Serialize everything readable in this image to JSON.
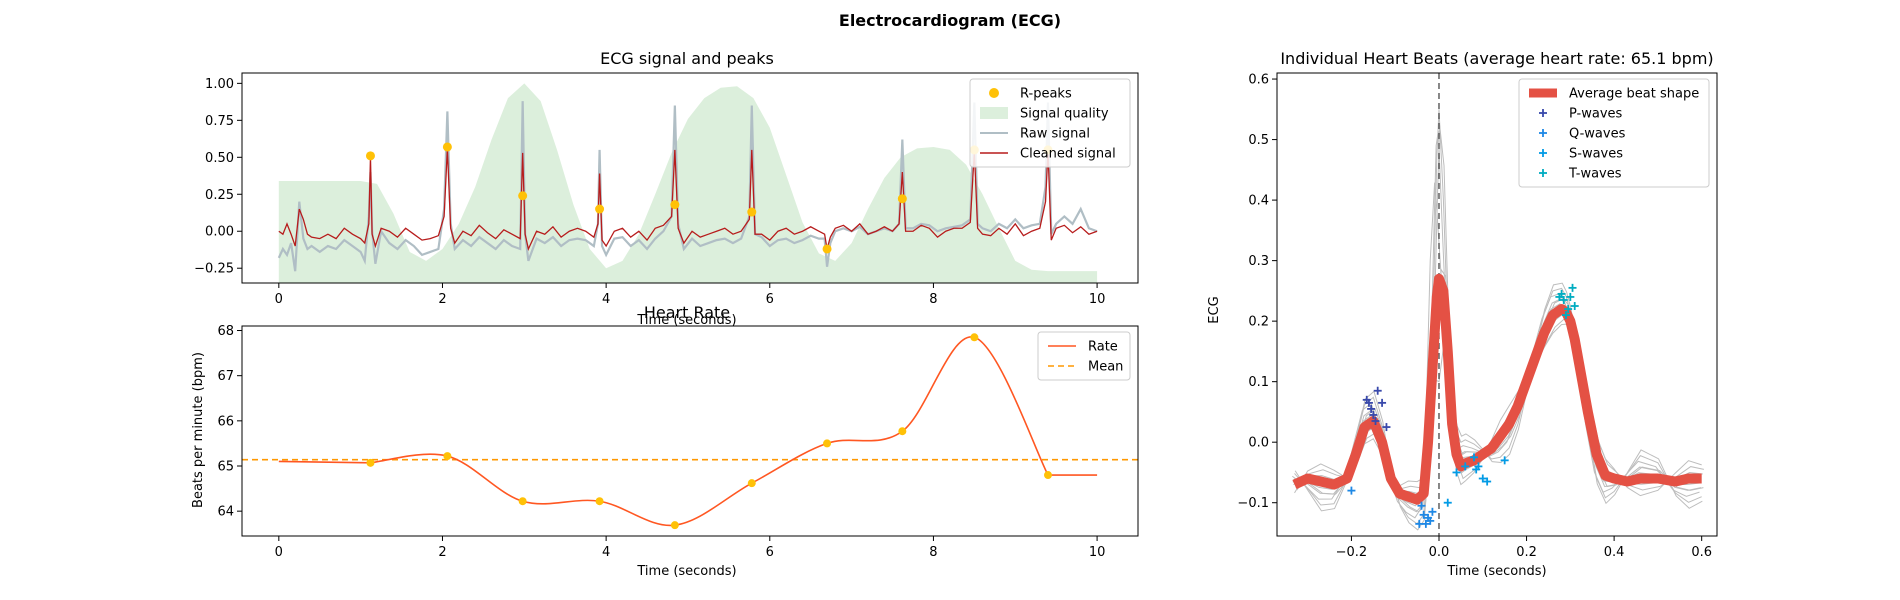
{
  "figure": {
    "suptitle": "Electrocardiogram (ECG)"
  },
  "colors": {
    "rpeak": "#FFC107",
    "quality": "#DCEFDC",
    "raw": "#B0BEC5",
    "clean": "#B71C1C",
    "rate": "#FF5722",
    "mean": "#FF9800",
    "avg_beat": "#E45144",
    "individual_beat": "#BDBDBD",
    "p_wave": "#3949AB",
    "q_wave": "#1E88E5",
    "s_wave": "#039BE5",
    "t_wave": "#00ACC1",
    "vline": "#555555"
  },
  "chart_data": [
    {
      "id": "ecg",
      "type": "line",
      "title": "ECG signal and peaks",
      "xlabel": "Time (seconds)",
      "ylabel": "",
      "xlim": [
        -0.45,
        10.5
      ],
      "ylim": [
        -0.35,
        1.07
      ],
      "xticks": [
        0,
        2,
        4,
        6,
        8,
        10
      ],
      "yticks": [
        -0.25,
        0.0,
        0.25,
        0.5,
        0.75,
        1.0
      ],
      "ytick_labels": [
        "−0.25",
        "0.00",
        "0.25",
        "0.50",
        "0.75",
        "1.00"
      ],
      "legend": [
        "R-peaks",
        "Signal quality",
        "Raw signal",
        "Cleaned signal"
      ],
      "legend_position": "upper right",
      "r_peaks": {
        "x": [
          1.12,
          2.06,
          2.98,
          3.92,
          4.84,
          5.78,
          6.7,
          7.62,
          8.5,
          9.4
        ],
        "y": [
          0.51,
          0.57,
          0.24,
          0.15,
          0.18,
          0.13,
          -0.12,
          0.22,
          0.55,
          0.55
        ]
      },
      "quality": {
        "x": [
          0,
          0.2,
          0.4,
          0.6,
          0.8,
          1.0,
          1.2,
          1.4,
          1.6,
          1.8,
          2.0,
          2.2,
          2.4,
          2.6,
          2.8,
          3.0,
          3.2,
          3.4,
          3.6,
          3.8,
          4.0,
          4.2,
          4.4,
          4.6,
          4.8,
          5.0,
          5.2,
          5.4,
          5.6,
          5.8,
          6.0,
          6.2,
          6.4,
          6.6,
          6.8,
          7.0,
          7.2,
          7.4,
          7.6,
          7.8,
          8.0,
          8.2,
          8.4,
          8.6,
          8.8,
          9.0,
          9.2,
          9.4,
          9.6,
          9.8,
          10.0
        ],
        "y": [
          0.34,
          0.34,
          0.34,
          0.34,
          0.34,
          0.34,
          0.32,
          0.12,
          -0.14,
          -0.2,
          -0.12,
          0.05,
          0.3,
          0.62,
          0.9,
          1.0,
          0.88,
          0.55,
          0.18,
          -0.12,
          -0.25,
          -0.2,
          -0.02,
          0.25,
          0.53,
          0.76,
          0.9,
          0.97,
          0.98,
          0.9,
          0.7,
          0.38,
          0.06,
          -0.15,
          -0.2,
          -0.08,
          0.15,
          0.36,
          0.5,
          0.56,
          0.57,
          0.55,
          0.45,
          0.25,
          0.02,
          -0.2,
          -0.26,
          -0.27,
          -0.27,
          -0.27,
          -0.27
        ]
      },
      "raw": {
        "x": [
          0,
          0.05,
          0.1,
          0.15,
          0.2,
          0.25,
          0.3,
          0.35,
          0.4,
          0.5,
          0.6,
          0.7,
          0.8,
          0.9,
          1.0,
          1.05,
          1.1,
          1.12,
          1.14,
          1.18,
          1.25,
          1.35,
          1.45,
          1.55,
          1.65,
          1.75,
          1.85,
          1.95,
          2.02,
          2.06,
          2.1,
          2.15,
          2.25,
          2.35,
          2.45,
          2.55,
          2.65,
          2.75,
          2.85,
          2.95,
          2.98,
          3.01,
          3.05,
          3.15,
          3.25,
          3.35,
          3.45,
          3.55,
          3.65,
          3.75,
          3.85,
          3.9,
          3.92,
          3.95,
          4.0,
          4.1,
          4.2,
          4.3,
          4.4,
          4.5,
          4.6,
          4.7,
          4.8,
          4.84,
          4.88,
          4.95,
          5.05,
          5.15,
          5.25,
          5.35,
          5.45,
          5.55,
          5.65,
          5.75,
          5.78,
          5.82,
          5.9,
          6.0,
          6.1,
          6.2,
          6.3,
          6.4,
          6.5,
          6.6,
          6.67,
          6.7,
          6.74,
          6.8,
          6.9,
          7.0,
          7.1,
          7.2,
          7.3,
          7.4,
          7.5,
          7.58,
          7.62,
          7.66,
          7.75,
          7.85,
          7.95,
          8.05,
          8.15,
          8.25,
          8.35,
          8.45,
          8.5,
          8.54,
          8.6,
          8.7,
          8.8,
          8.9,
          9.0,
          9.1,
          9.2,
          9.3,
          9.37,
          9.4,
          9.44,
          9.5,
          9.6,
          9.7,
          9.8,
          9.9,
          10.0
        ],
        "y": [
          -0.18,
          -0.12,
          -0.16,
          -0.08,
          -0.27,
          0.2,
          -0.05,
          -0.12,
          -0.1,
          -0.14,
          -0.1,
          -0.12,
          -0.06,
          -0.1,
          -0.14,
          -0.2,
          0.1,
          0.4,
          0.0,
          -0.22,
          0.0,
          -0.08,
          -0.12,
          -0.06,
          -0.1,
          -0.16,
          -0.14,
          -0.12,
          0.15,
          0.81,
          0.05,
          -0.12,
          -0.06,
          -0.1,
          -0.04,
          -0.08,
          -0.12,
          -0.06,
          -0.1,
          -0.12,
          0.88,
          -0.02,
          -0.2,
          -0.05,
          -0.08,
          -0.04,
          -0.1,
          -0.06,
          -0.05,
          -0.06,
          -0.1,
          0.05,
          0.55,
          -0.1,
          -0.16,
          -0.05,
          -0.04,
          -0.1,
          -0.06,
          -0.12,
          -0.05,
          0.0,
          0.1,
          0.85,
          0.05,
          -0.12,
          -0.05,
          -0.1,
          -0.08,
          -0.06,
          -0.05,
          -0.08,
          -0.05,
          0.1,
          0.85,
          -0.02,
          -0.04,
          -0.1,
          -0.06,
          -0.05,
          -0.08,
          -0.06,
          -0.03,
          -0.05,
          -0.05,
          -0.24,
          -0.08,
          0.0,
          0.02,
          0.0,
          0.03,
          -0.02,
          0.0,
          0.02,
          0.0,
          0.05,
          0.62,
          0.02,
          0.02,
          0.05,
          0.04,
          0.0,
          0.02,
          0.03,
          0.04,
          0.08,
          0.87,
          0.05,
          0.02,
          0.0,
          0.05,
          0.02,
          0.08,
          0.02,
          0.04,
          0.05,
          0.3,
          0.87,
          -0.02,
          0.05,
          0.1,
          0.05,
          0.15,
          0.02,
          0.0
        ]
      },
      "clean": {
        "x": [
          0,
          0.05,
          0.1,
          0.15,
          0.2,
          0.25,
          0.3,
          0.35,
          0.4,
          0.5,
          0.6,
          0.7,
          0.8,
          0.9,
          1.0,
          1.05,
          1.1,
          1.12,
          1.14,
          1.18,
          1.25,
          1.35,
          1.45,
          1.55,
          1.65,
          1.75,
          1.85,
          1.95,
          2.02,
          2.06,
          2.1,
          2.15,
          2.25,
          2.35,
          2.45,
          2.55,
          2.65,
          2.75,
          2.85,
          2.95,
          2.98,
          3.01,
          3.05,
          3.15,
          3.25,
          3.35,
          3.45,
          3.55,
          3.65,
          3.75,
          3.85,
          3.9,
          3.92,
          3.95,
          4.0,
          4.1,
          4.2,
          4.3,
          4.4,
          4.5,
          4.6,
          4.7,
          4.8,
          4.84,
          4.88,
          4.95,
          5.05,
          5.15,
          5.25,
          5.35,
          5.45,
          5.55,
          5.65,
          5.75,
          5.78,
          5.82,
          5.9,
          6.0,
          6.1,
          6.2,
          6.3,
          6.4,
          6.5,
          6.6,
          6.67,
          6.7,
          6.74,
          6.8,
          6.9,
          7.0,
          7.1,
          7.2,
          7.3,
          7.4,
          7.5,
          7.58,
          7.62,
          7.66,
          7.75,
          7.85,
          7.95,
          8.05,
          8.15,
          8.25,
          8.35,
          8.45,
          8.5,
          8.54,
          8.6,
          8.7,
          8.8,
          8.9,
          9.0,
          9.1,
          9.2,
          9.3,
          9.37,
          9.4,
          9.44,
          9.5,
          9.6,
          9.7,
          9.8,
          9.9,
          10.0
        ],
        "y": [
          0.0,
          -0.02,
          0.05,
          -0.02,
          -0.1,
          0.15,
          0.08,
          -0.02,
          -0.04,
          -0.05,
          -0.02,
          -0.05,
          0.02,
          -0.02,
          -0.05,
          -0.08,
          0.05,
          0.5,
          -0.02,
          -0.1,
          0.02,
          0.0,
          -0.04,
          0.02,
          -0.02,
          -0.06,
          -0.05,
          -0.03,
          0.1,
          0.56,
          0.02,
          -0.08,
          0.0,
          -0.03,
          0.04,
          -0.01,
          -0.05,
          0.01,
          -0.02,
          -0.05,
          0.53,
          -0.02,
          -0.12,
          0.0,
          -0.02,
          0.03,
          -0.04,
          0.0,
          0.02,
          0.0,
          -0.04,
          0.05,
          0.39,
          -0.06,
          -0.1,
          0.0,
          0.02,
          -0.04,
          0.0,
          -0.06,
          0.02,
          0.04,
          0.1,
          0.55,
          0.02,
          -0.08,
          0.0,
          -0.04,
          -0.02,
          0.0,
          0.02,
          -0.02,
          0.0,
          0.08,
          0.55,
          -0.02,
          -0.02,
          -0.06,
          0.0,
          0.02,
          -0.02,
          0.0,
          0.03,
          0.0,
          -0.02,
          -0.12,
          -0.04,
          0.02,
          0.04,
          0.0,
          0.05,
          -0.02,
          0.0,
          0.03,
          0.0,
          0.05,
          0.4,
          0.0,
          0.0,
          0.04,
          0.02,
          -0.04,
          0.0,
          0.02,
          0.02,
          0.06,
          0.54,
          0.02,
          -0.02,
          -0.03,
          0.02,
          -0.02,
          0.05,
          -0.03,
          0.0,
          0.02,
          0.2,
          0.54,
          -0.06,
          0.02,
          0.04,
          -0.01,
          0.03,
          -0.02,
          0.0
        ]
      }
    },
    {
      "id": "rate",
      "type": "line",
      "title": "Heart Rate",
      "xlabel": "Time (seconds)",
      "ylabel": "Beats per minute (bpm)",
      "xlim": [
        -0.45,
        10.5
      ],
      "ylim": [
        63.45,
        68.1
      ],
      "xticks": [
        0,
        2,
        4,
        6,
        8,
        10
      ],
      "yticks": [
        64,
        65,
        66,
        67,
        68
      ],
      "legend": [
        "Rate",
        "Mean"
      ],
      "legend_position": "upper right",
      "mean": 65.14,
      "points": {
        "x": [
          1.12,
          2.06,
          2.98,
          3.92,
          4.84,
          5.78,
          6.7,
          7.62,
          8.5,
          9.4
        ],
        "y": [
          65.07,
          65.22,
          64.22,
          64.22,
          63.69,
          64.62,
          65.5,
          65.77,
          67.85,
          64.8
        ]
      },
      "start_value": 65.1,
      "end_x": 10.0
    },
    {
      "id": "beats",
      "type": "line",
      "title": "Individual Heart Beats (average heart rate: 65.1 bpm)",
      "xlabel": "Time (seconds)",
      "ylabel": "ECG",
      "xlim": [
        -0.37,
        0.635
      ],
      "ylim": [
        -0.155,
        0.61
      ],
      "xticks": [
        -0.2,
        0.0,
        0.2,
        0.4,
        0.6
      ],
      "xtick_labels": [
        "−0.2",
        "0.0",
        "0.2",
        "0.4",
        "0.6"
      ],
      "yticks": [
        -0.1,
        0.0,
        0.1,
        0.2,
        0.3,
        0.4,
        0.5,
        0.6
      ],
      "ytick_labels": [
        "−0.1",
        "0.0",
        "0.1",
        "0.2",
        "0.3",
        "0.4",
        "0.5",
        "0.6"
      ],
      "legend": [
        "Average beat shape",
        "P-waves",
        "Q-waves",
        "S-waves",
        "T-waves"
      ],
      "legend_position": "upper right",
      "average_beat": {
        "x": [
          -0.33,
          -0.3,
          -0.27,
          -0.24,
          -0.21,
          -0.19,
          -0.17,
          -0.15,
          -0.13,
          -0.11,
          -0.09,
          -0.07,
          -0.05,
          -0.035,
          -0.025,
          -0.015,
          -0.005,
          0.0,
          0.01,
          0.02,
          0.03,
          0.04,
          0.05,
          0.06,
          0.08,
          0.1,
          0.12,
          0.14,
          0.16,
          0.18,
          0.2,
          0.22,
          0.24,
          0.26,
          0.28,
          0.29,
          0.3,
          0.31,
          0.32,
          0.34,
          0.36,
          0.38,
          0.4,
          0.43,
          0.46,
          0.5,
          0.54,
          0.57,
          0.6
        ],
        "y": [
          -0.07,
          -0.06,
          -0.065,
          -0.07,
          -0.06,
          -0.02,
          0.025,
          0.035,
          0.0,
          -0.06,
          -0.085,
          -0.09,
          -0.095,
          -0.085,
          0.0,
          0.12,
          0.24,
          0.27,
          0.25,
          0.15,
          0.03,
          -0.02,
          -0.04,
          -0.035,
          -0.03,
          -0.02,
          -0.01,
          0.01,
          0.03,
          0.06,
          0.1,
          0.14,
          0.18,
          0.21,
          0.22,
          0.215,
          0.2,
          0.17,
          0.13,
          0.05,
          -0.02,
          -0.055,
          -0.06,
          -0.065,
          -0.06,
          -0.06,
          -0.065,
          -0.06,
          -0.06
        ]
      },
      "individual_beats": [
        {
          "dy": 0.04,
          "peak": 0.55,
          "dt": 0.0
        },
        {
          "dy": -0.02,
          "peak": 0.3,
          "dt": 0.01
        },
        {
          "dy": 0.03,
          "peak": 0.5,
          "dt": -0.01
        },
        {
          "dy": -0.01,
          "peak": 0.2,
          "dt": 0.005
        },
        {
          "dy": 0.0,
          "peak": 0.18,
          "dt": -0.005
        },
        {
          "dy": 0.02,
          "peak": 0.22,
          "dt": 0.008
        },
        {
          "dy": -0.03,
          "peak": 0.1,
          "dt": 0.0
        },
        {
          "dy": 0.01,
          "peak": 0.25,
          "dt": -0.008
        },
        {
          "dy": 0.05,
          "peak": 0.54,
          "dt": 0.003
        },
        {
          "dy": 0.02,
          "peak": 0.53,
          "dt": -0.003
        }
      ],
      "p_waves": {
        "x": [
          -0.165,
          -0.16,
          -0.155,
          -0.15,
          -0.145,
          -0.14,
          -0.13,
          -0.12
        ],
        "y": [
          0.07,
          0.065,
          0.055,
          0.045,
          0.035,
          0.085,
          0.065,
          0.025
        ]
      },
      "q_waves": {
        "x": [
          -0.2,
          -0.045,
          -0.04,
          -0.035,
          -0.03,
          -0.025,
          -0.02,
          -0.015
        ],
        "y": [
          -0.08,
          -0.135,
          -0.105,
          -0.12,
          -0.135,
          -0.125,
          -0.13,
          -0.115
        ]
      },
      "s_waves": {
        "x": [
          0.02,
          0.04,
          0.06,
          0.08,
          0.085,
          0.09,
          0.1,
          0.11,
          0.15
        ],
        "y": [
          -0.1,
          -0.05,
          -0.04,
          -0.025,
          -0.045,
          -0.04,
          -0.06,
          -0.065,
          -0.03
        ]
      },
      "t_waves": {
        "x": [
          0.275,
          0.28,
          0.285,
          0.29,
          0.295,
          0.3,
          0.305,
          0.31
        ],
        "y": [
          0.24,
          0.245,
          0.235,
          0.21,
          0.22,
          0.24,
          0.255,
          0.225
        ]
      }
    }
  ]
}
